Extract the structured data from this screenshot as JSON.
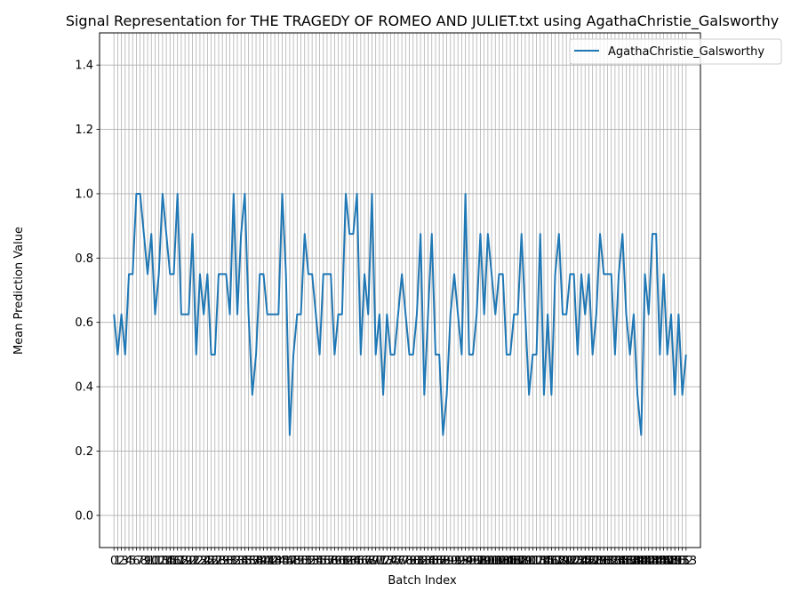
{
  "chart_data": {
    "type": "line",
    "title": "Signal Representation for THE TRAGEDY OF ROMEO AND JULIET.txt using AgathaChristie_Galsworthy",
    "xlabel": "Batch Index",
    "ylabel": "Mean Prediction Value",
    "ylim": [
      -0.1,
      1.5
    ],
    "yticks": [
      0.0,
      0.2,
      0.4,
      0.6,
      0.8,
      1.0,
      1.2,
      1.4
    ],
    "ytick_labels": [
      "0.0",
      "0.2",
      "0.4",
      "0.6",
      "0.8",
      "1.0",
      "1.2",
      "1.4"
    ],
    "x": [
      0,
      1,
      2,
      3,
      4,
      5,
      6,
      7,
      8,
      9,
      10,
      11,
      12,
      13,
      14,
      15,
      16,
      17,
      18,
      19,
      20,
      21,
      22,
      23,
      24,
      25,
      26,
      27,
      28,
      29,
      30,
      31,
      32,
      33,
      34,
      35,
      36,
      37,
      38,
      39,
      40,
      41,
      42,
      43,
      44,
      45,
      46,
      47,
      48,
      49,
      50,
      51,
      52,
      53,
      54,
      55,
      56,
      57,
      58,
      59,
      60,
      61,
      62,
      63,
      64,
      65,
      66,
      67,
      68,
      69,
      70,
      71,
      72,
      73,
      74,
      75,
      76,
      77,
      78,
      79,
      80,
      81,
      82,
      83,
      84,
      85,
      86,
      87,
      88,
      89,
      90,
      91,
      92,
      93,
      94,
      95,
      96,
      97,
      98,
      99,
      100,
      101,
      102,
      103,
      104,
      105,
      106,
      107,
      108,
      109,
      110,
      111,
      112,
      113,
      114,
      115,
      116,
      117,
      118,
      119,
      120,
      121,
      122,
      123,
      124,
      125,
      126,
      127,
      128,
      129,
      130,
      131,
      132,
      133,
      134,
      135,
      136,
      137,
      138,
      139,
      140,
      141,
      142,
      143,
      144,
      145,
      146,
      147,
      148,
      149,
      150,
      151,
      152,
      153
    ],
    "xtick_labels": [
      "0",
      "1",
      "2",
      "3",
      "4",
      "5",
      "6",
      "7",
      "8",
      "9",
      "10",
      "11",
      "12",
      "13",
      "14",
      "15",
      "16",
      "17",
      "18",
      "19",
      "20",
      "21",
      "22",
      "23",
      "24",
      "25",
      "26",
      "27",
      "28",
      "29",
      "30",
      "31",
      "32",
      "33",
      "34",
      "35",
      "36",
      "37",
      "38",
      "39",
      "40",
      "41",
      "42",
      "43",
      "44",
      "45",
      "46",
      "47",
      "48",
      "49",
      "50",
      "51",
      "52",
      "53",
      "54",
      "55",
      "56",
      "57",
      "58",
      "59",
      "60",
      "61",
      "62",
      "63",
      "64",
      "65",
      "66",
      "67",
      "68",
      "69",
      "70",
      "71",
      "72",
      "73",
      "74",
      "75",
      "76",
      "77",
      "78",
      "79",
      "80",
      "81",
      "82",
      "83",
      "84",
      "85",
      "86",
      "87",
      "88",
      "89",
      "90",
      "91",
      "92",
      "93",
      "94",
      "95",
      "96",
      "97",
      "98",
      "99",
      "100",
      "101",
      "102",
      "103",
      "104",
      "105",
      "106",
      "107",
      "108",
      "109",
      "110",
      "111",
      "112",
      "113",
      "114",
      "115",
      "116",
      "117",
      "118",
      "119",
      "120",
      "121",
      "122",
      "123",
      "124",
      "125",
      "126",
      "127",
      "128",
      "129",
      "130",
      "131",
      "132",
      "133",
      "134",
      "135",
      "136",
      "137",
      "138",
      "139",
      "140",
      "141",
      "142",
      "143",
      "144",
      "145",
      "146",
      "147",
      "148",
      "149",
      "150",
      "151",
      "152",
      "153"
    ],
    "grid": true,
    "legend_position": "top-right",
    "series": [
      {
        "name": "AgathaChristie_Galsworthy",
        "color": "#1f77b4",
        "values": [
          0.625,
          0.5,
          0.625,
          0.5,
          0.75,
          0.75,
          1.0,
          1.0,
          0.875,
          0.75,
          0.875,
          0.625,
          0.75,
          1.0,
          0.875,
          0.75,
          0.75,
          1.0,
          0.625,
          0.625,
          0.625,
          0.875,
          0.5,
          0.75,
          0.625,
          0.75,
          0.5,
          0.5,
          0.75,
          0.75,
          0.75,
          0.625,
          1.0,
          0.625,
          0.875,
          1.0,
          0.625,
          0.375,
          0.5,
          0.75,
          0.75,
          0.625,
          0.625,
          0.625,
          0.625,
          1.0,
          0.75,
          0.25,
          0.5,
          0.625,
          0.625,
          0.875,
          0.75,
          0.75,
          0.625,
          0.5,
          0.75,
          0.75,
          0.75,
          0.5,
          0.625,
          0.625,
          1.0,
          0.875,
          0.875,
          1.0,
          0.5,
          0.75,
          0.625,
          1.0,
          0.5,
          0.625,
          0.375,
          0.625,
          0.5,
          0.5,
          0.625,
          0.75,
          0.625,
          0.5,
          0.5,
          0.625,
          0.875,
          0.375,
          0.625,
          0.875,
          0.5,
          0.5,
          0.25,
          0.375,
          0.625,
          0.75,
          0.625,
          0.5,
          1.0,
          0.5,
          0.5,
          0.625,
          0.875,
          0.625,
          0.875,
          0.75,
          0.625,
          0.75,
          0.75,
          0.5,
          0.5,
          0.625,
          0.625,
          0.875,
          0.625,
          0.375,
          0.5,
          0.5,
          0.875,
          0.375,
          0.625,
          0.375,
          0.75,
          0.875,
          0.625,
          0.625,
          0.75,
          0.75,
          0.5,
          0.75,
          0.625,
          0.75,
          0.5,
          0.625,
          0.875,
          0.75,
          0.75,
          0.75,
          0.5,
          0.75,
          0.875,
          0.625,
          0.5,
          0.625,
          0.375,
          0.25,
          0.75,
          0.625,
          0.875,
          0.875,
          0.5,
          0.75,
          0.5,
          0.625,
          0.375,
          0.625,
          0.375,
          0.5
        ]
      }
    ]
  }
}
